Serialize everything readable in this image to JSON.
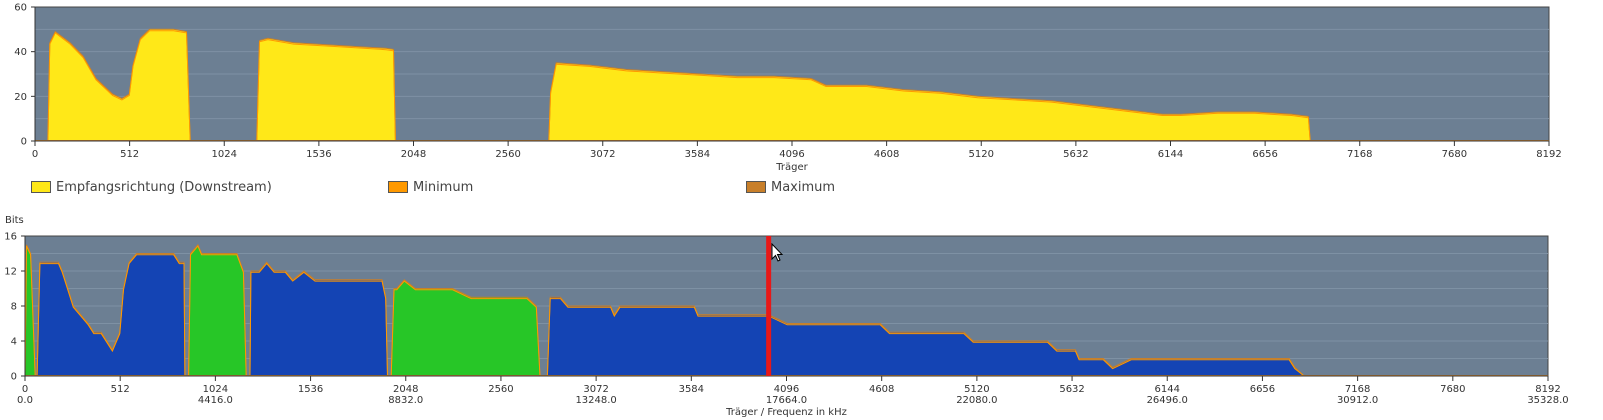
{
  "colors": {
    "plot_bg": "#6c7f93",
    "grid": "#7e91a4",
    "downstream": "#ffe818",
    "minimum": "#ff9900",
    "maximum": "#c87f2a",
    "bits_blue": "#1444b4",
    "bits_green": "#27c627",
    "marker": "#e81818"
  },
  "legend": [
    {
      "label": "Empfangsrichtung (Downstream)",
      "color": "#ffe818"
    },
    {
      "label": "Minimum",
      "color": "#ff9900"
    },
    {
      "label": "Maximum",
      "color": "#c87f2a"
    }
  ],
  "chart_data": [
    {
      "type": "area",
      "xlabel": "Träger",
      "ylabel": "",
      "xlim": [
        0,
        8192
      ],
      "ylim": [
        0,
        60
      ],
      "xticks": [
        "0",
        "512",
        "1024",
        "1536",
        "2048",
        "2560",
        "3072",
        "3584",
        "4096",
        "4608",
        "5120",
        "5632",
        "6144",
        "6656",
        "7168",
        "7680",
        "8192"
      ],
      "yticks": [
        "0",
        "20",
        "40",
        "60"
      ],
      "grid": true,
      "series": [
        {
          "name": "Empfangsrichtung (Downstream)",
          "segments": [
            [
              [
                70,
                0
              ],
              [
                80,
                44
              ],
              [
                110,
                49
              ],
              [
                190,
                44
              ],
              [
                260,
                38
              ],
              [
                330,
                28
              ],
              [
                420,
                21
              ],
              [
                470,
                19
              ],
              [
                510,
                21
              ],
              [
                530,
                34
              ],
              [
                570,
                46
              ],
              [
                620,
                50
              ],
              [
                750,
                50
              ],
              [
                820,
                49
              ],
              [
                840,
                0
              ]
            ],
            [
              [
                1200,
                0
              ],
              [
                1215,
                45
              ],
              [
                1260,
                46
              ],
              [
                1400,
                44
              ],
              [
                1600,
                43
              ],
              [
                1800,
                42
              ],
              [
                1900,
                41.5
              ],
              [
                1940,
                41
              ],
              [
                1950,
                0
              ]
            ],
            [
              [
                2780,
                0
              ],
              [
                2790,
                22
              ],
              [
                2820,
                35
              ],
              [
                3000,
                34
              ],
              [
                3100,
                33
              ],
              [
                3200,
                32
              ],
              [
                3400,
                31
              ],
              [
                3600,
                30
              ],
              [
                3800,
                29
              ],
              [
                4000,
                29
              ],
              [
                4200,
                28
              ],
              [
                4280,
                25
              ],
              [
                4500,
                25
              ],
              [
                4700,
                23
              ],
              [
                4900,
                22
              ],
              [
                5100,
                20
              ],
              [
                5300,
                19
              ],
              [
                5500,
                18
              ],
              [
                5700,
                16
              ],
              [
                5900,
                14
              ],
              [
                6100,
                12
              ],
              [
                6200,
                12
              ],
              [
                6400,
                13
              ],
              [
                6600,
                13
              ],
              [
                6800,
                12
              ],
              [
                6890,
                11
              ],
              [
                6900,
                0
              ]
            ]
          ]
        }
      ]
    },
    {
      "type": "area",
      "xlabel": "Träger / Frequenz in kHz",
      "ylabel": "Bits",
      "xlim": [
        0,
        8192
      ],
      "ylim": [
        0,
        16
      ],
      "xticks": [
        "0",
        "512",
        "1024",
        "1536",
        "2048",
        "2560",
        "3072",
        "3584",
        "4096",
        "4608",
        "5120",
        "5632",
        "6144",
        "6656",
        "7168",
        "7680",
        "8192"
      ],
      "xticks_freq": [
        "0.0",
        "4416.0",
        "8832.0",
        "13248.0",
        "17664.0",
        "22080.0",
        "26496.0",
        "30912.0",
        "35328.0"
      ],
      "yticks": [
        "0",
        "4",
        "8",
        "12",
        "16"
      ],
      "grid": true,
      "marker_x": 4000,
      "series": [
        {
          "name": "",
          "color": "#1444b4",
          "segments": [
            [
              [
                65,
                0
              ],
              [
                80,
                13
              ],
              [
                180,
                13
              ],
              [
                200,
                12
              ],
              [
                230,
                10
              ],
              [
                260,
                8
              ],
              [
                300,
                7
              ],
              [
                340,
                6
              ],
              [
                370,
                5
              ],
              [
                410,
                5
              ],
              [
                440,
                4
              ],
              [
                470,
                3
              ],
              [
                510,
                5
              ],
              [
                530,
                10
              ],
              [
                560,
                13
              ],
              [
                600,
                14
              ],
              [
                800,
                14
              ],
              [
                830,
                13
              ],
              [
                855,
                13
              ],
              [
                860,
                0
              ]
            ],
            [
              [
                1210,
                0
              ],
              [
                1215,
                12
              ],
              [
                1260,
                12
              ],
              [
                1300,
                13
              ],
              [
                1340,
                12
              ],
              [
                1400,
                12
              ],
              [
                1440,
                11
              ],
              [
                1500,
                12
              ],
              [
                1560,
                11
              ],
              [
                1800,
                11
              ],
              [
                1920,
                11
              ],
              [
                1940,
                9
              ],
              [
                1950,
                0
              ]
            ],
            [
              [
                2810,
                0
              ],
              [
                2825,
                9
              ],
              [
                2880,
                9
              ],
              [
                2920,
                8
              ],
              [
                3150,
                8
              ],
              [
                3170,
                7
              ],
              [
                3200,
                8
              ],
              [
                3500,
                8
              ],
              [
                3600,
                8
              ],
              [
                3620,
                7
              ],
              [
                3750,
                7
              ],
              [
                4000,
                7
              ],
              [
                4100,
                6
              ],
              [
                4600,
                6
              ],
              [
                4650,
                5
              ],
              [
                5050,
                5
              ],
              [
                5100,
                4
              ],
              [
                5500,
                4
              ],
              [
                5550,
                3
              ],
              [
                5650,
                3
              ],
              [
                5670,
                2
              ],
              [
                5800,
                2
              ],
              [
                5850,
                1
              ],
              [
                5950,
                2
              ],
              [
                6200,
                2
              ],
              [
                6800,
                2
              ],
              [
                6830,
                1
              ],
              [
                6880,
                0
              ]
            ]
          ]
        },
        {
          "name": "",
          "color": "#27c627",
          "segments": [
            [
              [
                0,
                0
              ],
              [
                8,
                15
              ],
              [
                30,
                14
              ],
              [
                55,
                0
              ]
            ],
            [
              [
                880,
                0
              ],
              [
                890,
                14
              ],
              [
                930,
                15
              ],
              [
                950,
                14
              ],
              [
                1140,
                14
              ],
              [
                1175,
                12
              ],
              [
                1190,
                0
              ]
            ],
            [
              [
                1970,
                0
              ],
              [
                1985,
                10
              ],
              [
                2000,
                10
              ],
              [
                2040,
                11
              ],
              [
                2100,
                10
              ],
              [
                2300,
                10
              ],
              [
                2400,
                9
              ],
              [
                2700,
                9
              ],
              [
                2750,
                8
              ],
              [
                2770,
                0
              ]
            ]
          ]
        }
      ]
    }
  ]
}
